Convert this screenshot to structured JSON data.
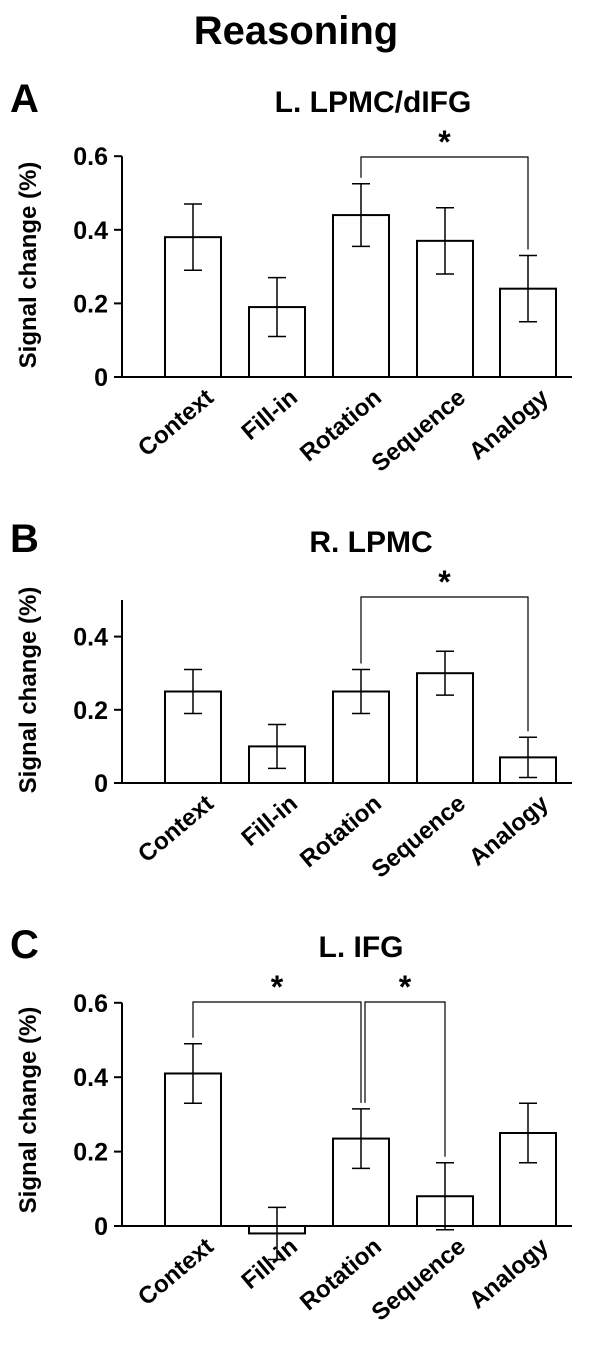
{
  "figure_title": "Reasoning",
  "chart_data": [
    {
      "type": "bar",
      "panel_label": "A",
      "title": "L. LPMC/dIFG",
      "ylabel": "Signal change (%)",
      "xlabel": "",
      "categories": [
        "Context",
        "Fill-in",
        "Rotation",
        "Sequence",
        "Analogy"
      ],
      "values": [
        0.38,
        0.19,
        0.44,
        0.37,
        0.24
      ],
      "errors": [
        0.09,
        0.08,
        0.085,
        0.09,
        0.09
      ],
      "ylim": [
        0,
        0.6
      ],
      "yticks": [
        "0",
        "0.2",
        "0.4",
        "0.6"
      ],
      "significance": [
        {
          "from": "Rotation",
          "to": "Analogy",
          "label": "*"
        }
      ]
    },
    {
      "type": "bar",
      "panel_label": "B",
      "title": "R. LPMC",
      "ylabel": "Signal change (%)",
      "xlabel": "",
      "categories": [
        "Context",
        "Fill-in",
        "Rotation",
        "Sequence",
        "Analogy"
      ],
      "values": [
        0.25,
        0.1,
        0.25,
        0.3,
        0.07
      ],
      "errors": [
        0.06,
        0.06,
        0.06,
        0.06,
        0.055
      ],
      "ylim": [
        0,
        0.5
      ],
      "yticks": [
        "0",
        "0.2",
        "0.4"
      ],
      "significance": [
        {
          "from": "Rotation",
          "to": "Analogy",
          "label": "*"
        }
      ]
    },
    {
      "type": "bar",
      "panel_label": "C",
      "title": "L. IFG",
      "ylabel": "Signal change (%)",
      "xlabel": "",
      "categories": [
        "Context",
        "Fill-in",
        "Rotation",
        "Sequence",
        "Analogy"
      ],
      "values": [
        0.41,
        -0.02,
        0.235,
        0.08,
        0.25
      ],
      "errors": [
        0.08,
        0.07,
        0.08,
        0.09,
        0.08
      ],
      "ylim": [
        0,
        0.6
      ],
      "yticks": [
        "0",
        "0.2",
        "0.4",
        "0.6"
      ],
      "significance": [
        {
          "from": "Context",
          "to": "Rotation",
          "label": "*"
        },
        {
          "from": "Rotation",
          "to": "Sequence",
          "label": "*"
        }
      ]
    }
  ]
}
